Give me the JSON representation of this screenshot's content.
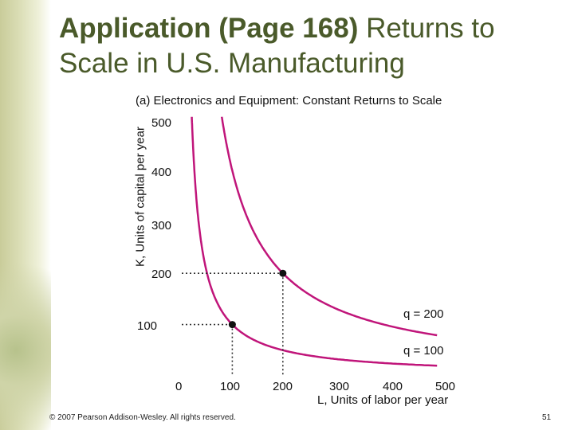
{
  "slide": {
    "title_bold": "Application (Page 168)",
    "title_rest": "Returns to Scale in U.S. Manufacturing",
    "copyright": "© 2007 Pearson Addison-Wesley. All rights reserved.",
    "page_number": "51"
  },
  "chart_data": {
    "type": "line",
    "title": "(a) Electronics and Equipment: Constant Returns to Scale",
    "xlabel": "L, Units of labor per year",
    "ylabel": "K, Units of capital per year",
    "xlim": [
      0,
      500
    ],
    "ylim": [
      0,
      500
    ],
    "x_ticks": [
      "0",
      "100",
      "200",
      "300",
      "400",
      "500"
    ],
    "y_ticks": [
      "100",
      "200",
      "300",
      "400",
      "500"
    ],
    "grid": false,
    "series": [
      {
        "name": "q = 100",
        "label": "q = 100",
        "k": 10000,
        "color": "#c0157a"
      },
      {
        "name": "q = 200",
        "label": "q = 200",
        "k": 40000,
        "color": "#c0157a"
      }
    ],
    "points": [
      {
        "x": 100,
        "y": 100,
        "series": "q = 100"
      },
      {
        "x": 200,
        "y": 200,
        "series": "q = 200"
      }
    ]
  }
}
